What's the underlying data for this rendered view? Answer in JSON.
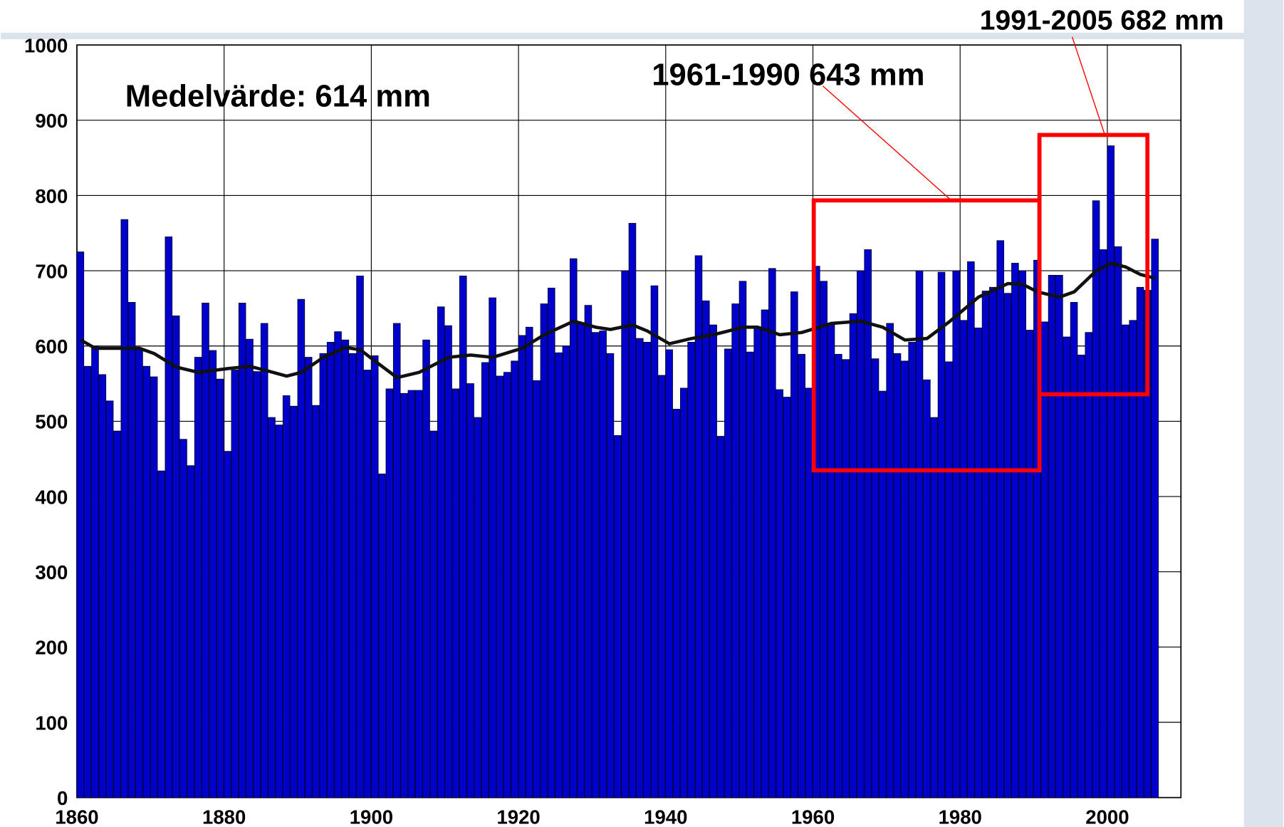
{
  "chart_data": {
    "type": "bar",
    "x": [
      1860,
      1861,
      1862,
      1863,
      1864,
      1865,
      1866,
      1867,
      1868,
      1869,
      1870,
      1871,
      1872,
      1873,
      1874,
      1875,
      1876,
      1877,
      1878,
      1879,
      1880,
      1881,
      1882,
      1883,
      1884,
      1885,
      1886,
      1887,
      1888,
      1889,
      1890,
      1891,
      1892,
      1893,
      1894,
      1895,
      1896,
      1897,
      1898,
      1899,
      1900,
      1901,
      1902,
      1903,
      1904,
      1905,
      1906,
      1907,
      1908,
      1909,
      1910,
      1911,
      1912,
      1913,
      1914,
      1915,
      1916,
      1917,
      1918,
      1919,
      1920,
      1921,
      1922,
      1923,
      1924,
      1925,
      1926,
      1927,
      1928,
      1929,
      1930,
      1931,
      1932,
      1933,
      1934,
      1935,
      1936,
      1937,
      1938,
      1939,
      1940,
      1941,
      1942,
      1943,
      1944,
      1945,
      1946,
      1947,
      1948,
      1949,
      1950,
      1951,
      1952,
      1953,
      1954,
      1955,
      1956,
      1957,
      1958,
      1959,
      1960,
      1961,
      1962,
      1963,
      1964,
      1965,
      1966,
      1967,
      1968,
      1969,
      1970,
      1971,
      1972,
      1973,
      1974,
      1975,
      1976,
      1977,
      1978,
      1979,
      1980,
      1981,
      1982,
      1983,
      1984,
      1985,
      1986,
      1987,
      1988,
      1989,
      1990,
      1991,
      1992,
      1993,
      1994,
      1995,
      1996,
      1997,
      1998,
      1999,
      2000,
      2001,
      2002,
      2003,
      2004,
      2005,
      2006
    ],
    "values": [
      725,
      573,
      600,
      562,
      527,
      487,
      768,
      658,
      597,
      573,
      559,
      434,
      745,
      640,
      476,
      441,
      585,
      657,
      594,
      556,
      460,
      568,
      657,
      609,
      566,
      630,
      505,
      495,
      534,
      520,
      662,
      585,
      521,
      590,
      605,
      619,
      608,
      590,
      693,
      568,
      587,
      430,
      543,
      630,
      537,
      541,
      541,
      608,
      487,
      652,
      627,
      543,
      693,
      550,
      505,
      578,
      664,
      560,
      565,
      580,
      614,
      625,
      554,
      656,
      677,
      591,
      600,
      716,
      630,
      654,
      618,
      620,
      590,
      481,
      700,
      763,
      610,
      605,
      680,
      561,
      595,
      516,
      544,
      605,
      720,
      660,
      628,
      480,
      596,
      656,
      686,
      592,
      625,
      648,
      703,
      542,
      532,
      672,
      589,
      544,
      706,
      686,
      628,
      589,
      582,
      643,
      700,
      728,
      583,
      540,
      630,
      590,
      580,
      605,
      700,
      555,
      505,
      698,
      579,
      700,
      634,
      712,
      624,
      673,
      678,
      740,
      670,
      710,
      700,
      621,
      714,
      632,
      694,
      694,
      612,
      658,
      588,
      618,
      793,
      728,
      866,
      732,
      628,
      634,
      678,
      674,
      742
    ],
    "color": "#0000cc",
    "smooth": {
      "color": "#111111",
      "x": [
        1860,
        1862,
        1865,
        1868,
        1870,
        1873,
        1876,
        1880,
        1883,
        1885,
        1888,
        1890,
        1893,
        1896,
        1898,
        1900,
        1903,
        1906,
        1910,
        1913,
        1916,
        1920,
        1923,
        1927,
        1930,
        1932,
        1935,
        1937,
        1940,
        1943,
        1946,
        1950,
        1952,
        1955,
        1958,
        1962,
        1966,
        1969,
        1972,
        1975,
        1978,
        1982,
        1986,
        1988,
        1990,
        1993,
        1995,
        1998,
        2000,
        2002,
        2004,
        2006
      ],
      "values": [
        608,
        597,
        597,
        597,
        590,
        572,
        565,
        570,
        573,
        568,
        560,
        565,
        585,
        598,
        595,
        580,
        558,
        565,
        585,
        588,
        585,
        597,
        615,
        633,
        625,
        622,
        628,
        620,
        603,
        610,
        615,
        625,
        625,
        615,
        618,
        630,
        633,
        625,
        608,
        610,
        632,
        665,
        683,
        682,
        672,
        665,
        672,
        700,
        710,
        705,
        695,
        690
      ]
    },
    "xlim": [
      1860,
      2010
    ],
    "xticks": [
      1860,
      1880,
      1900,
      1920,
      1940,
      1960,
      1980,
      2000
    ],
    "ylim": [
      0,
      1000
    ],
    "yticks": [
      0,
      100,
      200,
      300,
      400,
      500,
      600,
      700,
      800,
      900,
      1000
    ],
    "grid": true,
    "annotations": [
      "Medelvärde: 614 mm",
      "1961-1990 643 mm",
      "1991-2005 682 mm"
    ]
  }
}
